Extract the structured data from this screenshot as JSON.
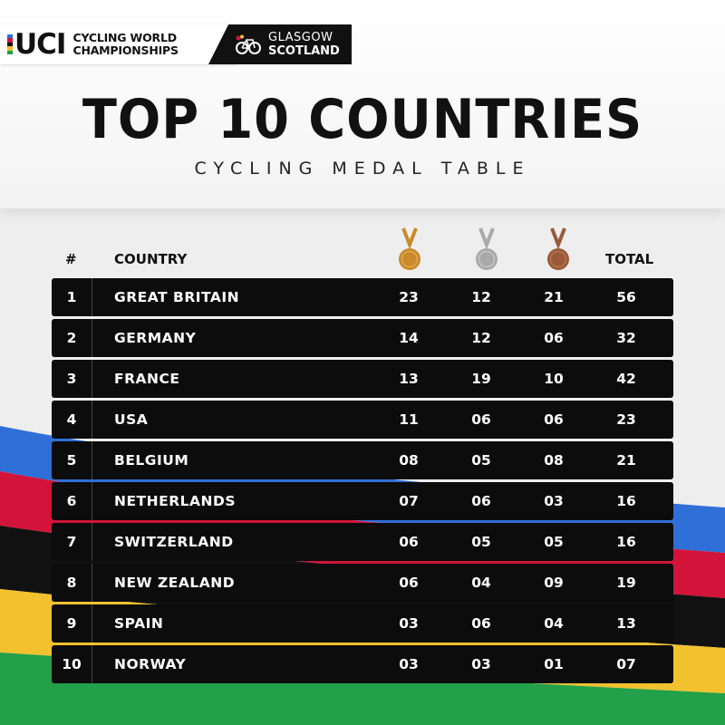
{
  "branding": {
    "uci": "UCI",
    "event_line1": "CYCLING WORLD",
    "event_line2": "CHAMPIONSHIPS",
    "host_line1": "GLASGOW",
    "host_line2": "SCOTLAND"
  },
  "title": "TOP 10 COUNTRIES",
  "subtitle": "CYCLING MEDAL TABLE",
  "columns": {
    "rank": "#",
    "country": "COUNTRY",
    "gold_icon": "gold-medal-icon",
    "silver_icon": "silver-medal-icon",
    "bronze_icon": "bronze-medal-icon",
    "total": "TOTAL"
  },
  "colors": {
    "gold": "#c98a2b",
    "silver": "#a9a9a9",
    "bronze": "#9a5a3a",
    "row_bg": "#0c0c0c",
    "stripe_blue": "#2e6fd8",
    "stripe_red": "#d2143a",
    "stripe_black": "#111111",
    "stripe_yellow": "#f2c12e",
    "stripe_green": "#23a04a"
  },
  "rows": [
    {
      "rank": "1",
      "country": "GREAT BRITAIN",
      "gold": "23",
      "silver": "12",
      "bronze": "21",
      "total": "56"
    },
    {
      "rank": "2",
      "country": "GERMANY",
      "gold": "14",
      "silver": "12",
      "bronze": "06",
      "total": "32"
    },
    {
      "rank": "3",
      "country": "FRANCE",
      "gold": "13",
      "silver": "19",
      "bronze": "10",
      "total": "42"
    },
    {
      "rank": "4",
      "country": "USA",
      "gold": "11",
      "silver": "06",
      "bronze": "06",
      "total": "23"
    },
    {
      "rank": "5",
      "country": "BELGIUM",
      "gold": "08",
      "silver": "05",
      "bronze": "08",
      "total": "21"
    },
    {
      "rank": "6",
      "country": "NETHERLANDS",
      "gold": "07",
      "silver": "06",
      "bronze": "03",
      "total": "16"
    },
    {
      "rank": "7",
      "country": "SWITZERLAND",
      "gold": "06",
      "silver": "05",
      "bronze": "05",
      "total": "16"
    },
    {
      "rank": "8",
      "country": "NEW ZEALAND",
      "gold": "06",
      "silver": "04",
      "bronze": "09",
      "total": "19"
    },
    {
      "rank": "9",
      "country": "SPAIN",
      "gold": "03",
      "silver": "06",
      "bronze": "04",
      "total": "13"
    },
    {
      "rank": "10",
      "country": "NORWAY",
      "gold": "03",
      "silver": "03",
      "bronze": "01",
      "total": "07"
    }
  ]
}
